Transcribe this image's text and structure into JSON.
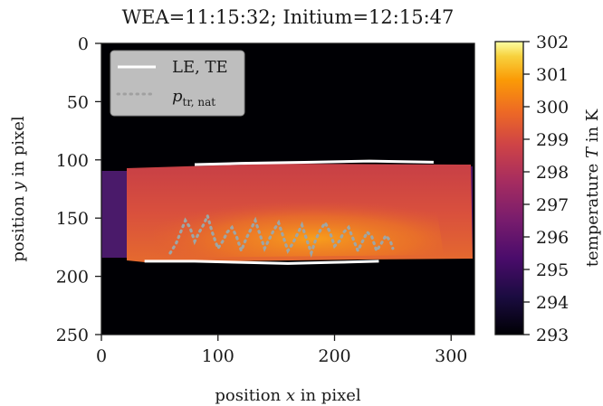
{
  "chart_data": {
    "type": "heatmap",
    "title": "WEA=11:15:32; Initium=12:15:47",
    "xlabel_prefix": "position ",
    "xlabel_var": "x",
    "xlabel_suffix": " in pixel",
    "ylabel_prefix": "position ",
    "ylabel_var": "y",
    "ylabel_suffix": " in pixel",
    "xlim": [
      0,
      320
    ],
    "ylim": [
      250,
      0
    ],
    "xticks": [
      0,
      100,
      200,
      300
    ],
    "yticks": [
      0,
      50,
      100,
      150,
      200,
      250
    ],
    "colorbar": {
      "label_prefix": "temperature ",
      "label_var": "T",
      "label_suffix": " in K",
      "range": [
        293,
        302
      ],
      "ticks": [
        293,
        294,
        295,
        296,
        297,
        298,
        299,
        300,
        301,
        302
      ],
      "colormap": "inferno"
    },
    "legend": {
      "placement": "top-left",
      "entries": [
        {
          "label": "LE, TE",
          "style": "solid",
          "color": "#ffffff"
        },
        {
          "label_base": "p",
          "label_sub": "tr, nat",
          "style": "dotted",
          "color": "#a0a0a0"
        }
      ]
    },
    "leading_edge": {
      "x": [
        80,
        120,
        180,
        230,
        285
      ],
      "y": [
        104,
        103,
        102,
        101,
        102
      ]
    },
    "trailing_edge": {
      "x": [
        37,
        80,
        160,
        200,
        238
      ],
      "y": [
        187,
        187,
        189,
        188,
        187
      ]
    },
    "transition_line": {
      "x": [
        59,
        64,
        68,
        72,
        76,
        80,
        84,
        88,
        91,
        95,
        100,
        104,
        108,
        112,
        116,
        120,
        124,
        128,
        132,
        136,
        140,
        144,
        148,
        152,
        156,
        160,
        164,
        168,
        172,
        176,
        180,
        184,
        188,
        192,
        196,
        200,
        204,
        208,
        212,
        216,
        220,
        224,
        228,
        232,
        236,
        240,
        244,
        248,
        250
      ],
      "y": [
        180,
        172,
        162,
        152,
        158,
        170,
        162,
        155,
        148,
        162,
        176,
        170,
        162,
        158,
        166,
        178,
        168,
        160,
        152,
        164,
        176,
        168,
        160,
        154,
        166,
        178,
        172,
        164,
        156,
        168,
        180,
        168,
        160,
        154,
        162,
        174,
        170,
        162,
        158,
        168,
        178,
        170,
        162,
        166,
        178,
        172,
        165,
        170,
        176
      ]
    }
  }
}
